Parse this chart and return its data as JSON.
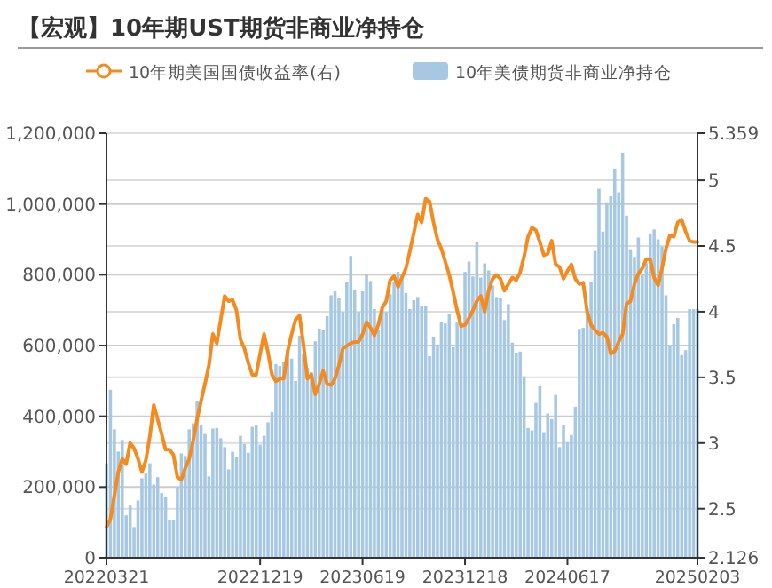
{
  "chart_data": {
    "type": "bar",
    "title": "【宏观】10年期UST期货非商业净持仓",
    "categories": [
      "20220321",
      null,
      null,
      null,
      null,
      null,
      null,
      null,
      null,
      null,
      null,
      null,
      null,
      null,
      null,
      null,
      null,
      null,
      null,
      null,
      null,
      null,
      null,
      null,
      null,
      null,
      null,
      null,
      null,
      null,
      null,
      null,
      null,
      null,
      null,
      null,
      null,
      null,
      null,
      "20221219",
      null,
      null,
      null,
      null,
      null,
      null,
      null,
      null,
      null,
      null,
      null,
      null,
      null,
      null,
      null,
      null,
      null,
      null,
      null,
      null,
      null,
      null,
      null,
      null,
      null,
      "20230619",
      null,
      null,
      null,
      null,
      null,
      null,
      null,
      null,
      null,
      null,
      null,
      null,
      null,
      null,
      null,
      null,
      null,
      null,
      null,
      null,
      null,
      null,
      null,
      null,
      null,
      "20231218",
      null,
      null,
      null,
      null,
      null,
      null,
      null,
      null,
      null,
      null,
      null,
      null,
      null,
      null,
      null,
      null,
      null,
      null,
      null,
      null,
      null,
      null,
      null,
      null,
      null,
      "20240617",
      null,
      null,
      null,
      null,
      null,
      null,
      null,
      null,
      null,
      null,
      null,
      null,
      null,
      null,
      null,
      null,
      null,
      null,
      null,
      null,
      null,
      null,
      null,
      null,
      null,
      null,
      null,
      null,
      null,
      null,
      null,
      null,
      "20250203"
    ],
    "series": [
      {
        "name": "10年期美国国债收益率(右)",
        "type": "line",
        "axis": "y2",
        "color": "#f58a1f",
        "values": [
          2.36,
          2.42,
          2.6,
          2.78,
          2.88,
          2.84,
          3.0,
          2.96,
          2.88,
          2.78,
          2.87,
          3.05,
          3.29,
          3.18,
          3.07,
          2.95,
          2.95,
          2.91,
          2.74,
          2.72,
          2.81,
          2.88,
          3.02,
          3.18,
          3.32,
          3.45,
          3.59,
          3.83,
          3.76,
          3.94,
          4.12,
          4.08,
          4.09,
          4.01,
          3.79,
          3.72,
          3.61,
          3.52,
          3.52,
          3.68,
          3.83,
          3.69,
          3.52,
          3.47,
          3.49,
          3.49,
          3.7,
          3.83,
          3.94,
          3.97,
          3.75,
          3.49,
          3.52,
          3.37,
          3.45,
          3.55,
          3.45,
          3.44,
          3.49,
          3.59,
          3.72,
          3.74,
          3.76,
          3.77,
          3.77,
          3.83,
          3.92,
          3.88,
          3.82,
          3.9,
          4.03,
          4.08,
          4.24,
          4.27,
          4.19,
          4.26,
          4.33,
          4.46,
          4.6,
          4.74,
          4.68,
          4.86,
          4.84,
          4.68,
          4.55,
          4.48,
          4.38,
          4.28,
          4.15,
          4.01,
          3.89,
          3.9,
          3.95,
          4.01,
          4.08,
          4.12,
          4.0,
          4.16,
          4.25,
          4.28,
          4.25,
          4.16,
          4.21,
          4.26,
          4.24,
          4.3,
          4.42,
          4.57,
          4.64,
          4.62,
          4.53,
          4.43,
          4.44,
          4.54,
          4.36,
          4.34,
          4.25,
          4.31,
          4.36,
          4.25,
          4.21,
          4.22,
          4.0,
          3.9,
          3.86,
          3.83,
          3.84,
          3.81,
          3.68,
          3.7,
          3.77,
          3.83,
          4.06,
          4.08,
          4.21,
          4.29,
          4.33,
          4.4,
          4.4,
          4.26,
          4.2,
          4.33,
          4.48,
          4.58,
          4.57,
          4.68,
          4.7,
          4.61,
          4.54,
          4.53,
          4.53
        ]
      },
      {
        "name": "10年美债期货非商业净持仓",
        "color": "#a6c8e3",
        "values": [
          267000,
          475000,
          363000,
          300000,
          333000,
          120000,
          148000,
          87000,
          162000,
          225000,
          238000,
          267000,
          207000,
          228000,
          183000,
          172000,
          108000,
          108000,
          200000,
          295000,
          288000,
          363000,
          380000,
          442000,
          375000,
          350000,
          230000,
          365000,
          367000,
          338000,
          313000,
          250000,
          300000,
          285000,
          345000,
          322000,
          297000,
          370000,
          375000,
          320000,
          345000,
          383000,
          412000,
          547000,
          542000,
          555000,
          588000,
          563000,
          500000,
          628000,
          575000,
          537000,
          525000,
          612000,
          648000,
          645000,
          683000,
          742000,
          753000,
          733000,
          695000,
          778000,
          853000,
          757000,
          695000,
          753000,
          803000,
          782000,
          703000,
          645000,
          703000,
          695000,
          745000,
          778000,
          808000,
          803000,
          748000,
          703000,
          728000,
          737000,
          712000,
          712000,
          570000,
          625000,
          603000,
          667000,
          662000,
          690000,
          595000,
          665000,
          658000,
          808000,
          837000,
          795000,
          892000,
          792000,
          832000,
          812000,
          770000,
          737000,
          735000,
          672000,
          717000,
          608000,
          580000,
          583000,
          513000,
          367000,
          360000,
          438000,
          485000,
          355000,
          408000,
          392000,
          460000,
          313000,
          375000,
          327000,
          347000,
          427000,
          647000,
          650000,
          705000,
          780000,
          867000,
          1043000,
          922000,
          1005000,
          1022000,
          1100000,
          1033000,
          1145000,
          967000,
          872000,
          850000,
          905000,
          798000,
          833000,
          917000,
          928000,
          900000,
          880000,
          742000,
          600000,
          660000,
          678000,
          573000,
          587000,
          703000,
          703000,
          703000
        ]
      }
    ],
    "ylim": [
      0,
      1200000
    ],
    "yticks": [
      0,
      {
        "value": 200000,
        "label": "200,000"
      },
      {
        "value": 400000,
        "label": "400,000"
      },
      {
        "value": 600000,
        "label": "600,000"
      },
      {
        "value": 800000,
        "label": "800,000"
      },
      {
        "value": 1000000,
        "label": "1,000,000"
      },
      {
        "value": 1200000,
        "label": "1,200,000"
      }
    ],
    "y2lim": [
      2.126,
      5.359
    ],
    "y2ticks": [
      2.126,
      2.5,
      3,
      3.5,
      4,
      4.5,
      5,
      5.359
    ],
    "grid": true,
    "legend": "top"
  }
}
